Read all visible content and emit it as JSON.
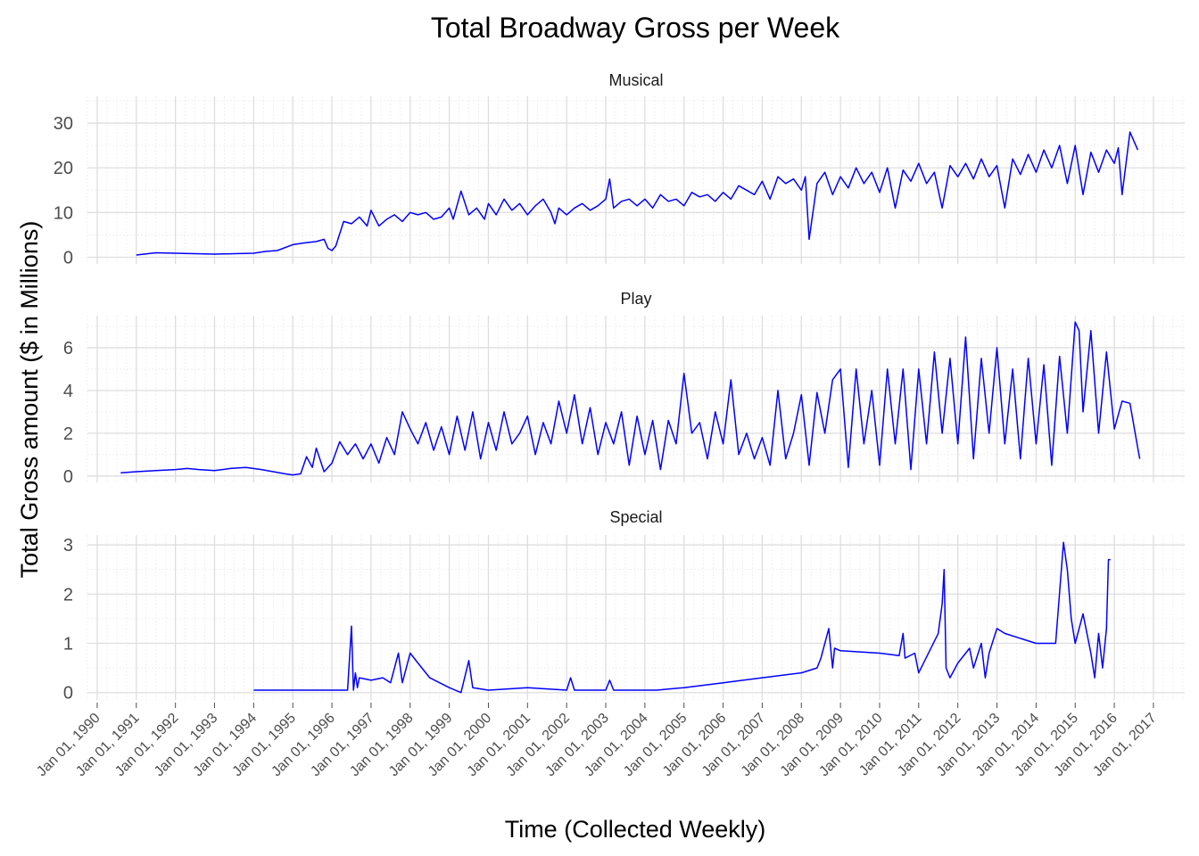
{
  "chart_data": {
    "type": "line",
    "title": "Total Broadway Gross per Week",
    "xlabel": "Time (Collected Weekly)",
    "ylabel": "Total Gross amount ($ in Millions)",
    "line_color": "#0000ff",
    "x_ticks": [
      "Jan 01, 1990",
      "Jan 01, 1991",
      "Jan 01, 1992",
      "Jan 01, 1993",
      "Jan 01, 1994",
      "Jan 01, 1995",
      "Jan 01, 1996",
      "Jan 01, 1997",
      "Jan 01, 1998",
      "Jan 01, 1999",
      "Jan 01, 2000",
      "Jan 01, 2001",
      "Jan 01, 2002",
      "Jan 01, 2003",
      "Jan 01, 2004",
      "Jan 01, 2005",
      "Jan 01, 2006",
      "Jan 01, 2007",
      "Jan 01, 2008",
      "Jan 01, 2009",
      "Jan 01, 2010",
      "Jan 01, 2011",
      "Jan 01, 2012",
      "Jan 01, 2013",
      "Jan 01, 2014",
      "Jan 01, 2015",
      "Jan 01, 2016",
      "Jan 01, 2017"
    ],
    "xlim": [
      1989.75,
      2017.8
    ],
    "grid": true,
    "panels": [
      {
        "name": "Musical",
        "ylim": [
          -1.5,
          36
        ],
        "y_ticks": [
          0,
          10,
          20,
          30
        ],
        "x": [
          1991.0,
          1991.5,
          1992.0,
          1992.5,
          1993.0,
          1993.5,
          1994.0,
          1994.3,
          1994.6,
          1995.0,
          1995.3,
          1995.6,
          1995.8,
          1995.9,
          1996.0,
          1996.1,
          1996.3,
          1996.5,
          1996.7,
          1996.9,
          1997.0,
          1997.2,
          1997.4,
          1997.6,
          1997.8,
          1998.0,
          1998.2,
          1998.4,
          1998.6,
          1998.8,
          1999.0,
          1999.1,
          1999.3,
          1999.5,
          1999.7,
          1999.9,
          2000.0,
          2000.2,
          2000.4,
          2000.6,
          2000.8,
          2001.0,
          2001.2,
          2001.4,
          2001.6,
          2001.7,
          2001.8,
          2002.0,
          2002.2,
          2002.4,
          2002.6,
          2002.8,
          2003.0,
          2003.1,
          2003.2,
          2003.4,
          2003.6,
          2003.8,
          2004.0,
          2004.2,
          2004.4,
          2004.6,
          2004.8,
          2005.0,
          2005.2,
          2005.4,
          2005.6,
          2005.8,
          2006.0,
          2006.2,
          2006.4,
          2006.6,
          2006.8,
          2007.0,
          2007.2,
          2007.4,
          2007.6,
          2007.8,
          2008.0,
          2008.1,
          2008.2,
          2008.4,
          2008.6,
          2008.8,
          2009.0,
          2009.2,
          2009.4,
          2009.6,
          2009.8,
          2010.0,
          2010.2,
          2010.4,
          2010.6,
          2010.8,
          2011.0,
          2011.2,
          2011.4,
          2011.6,
          2011.8,
          2012.0,
          2012.2,
          2012.4,
          2012.6,
          2012.8,
          2013.0,
          2013.2,
          2013.4,
          2013.6,
          2013.8,
          2014.0,
          2014.2,
          2014.4,
          2014.6,
          2014.8,
          2015.0,
          2015.2,
          2015.4,
          2015.6,
          2015.8,
          2016.0,
          2016.1,
          2016.2,
          2016.4,
          2016.6
        ],
        "y": [
          0.5,
          1.0,
          0.9,
          0.8,
          0.7,
          0.8,
          0.9,
          1.3,
          1.5,
          2.8,
          3.2,
          3.5,
          4.0,
          2.0,
          1.5,
          2.5,
          8.0,
          7.5,
          9.0,
          7.0,
          10.5,
          7.0,
          8.5,
          9.5,
          8.0,
          10.0,
          9.5,
          10.0,
          8.5,
          9.0,
          11.0,
          8.5,
          14.8,
          9.5,
          11.0,
          8.5,
          12.0,
          9.5,
          13.0,
          10.5,
          12.0,
          9.5,
          11.5,
          13.0,
          10.0,
          7.5,
          11.0,
          9.5,
          11.0,
          12.0,
          10.5,
          11.5,
          13.0,
          17.5,
          11.0,
          12.5,
          13.0,
          11.5,
          13.0,
          11.0,
          14.0,
          12.5,
          13.0,
          11.5,
          14.5,
          13.5,
          14.0,
          12.5,
          14.5,
          13.0,
          16.0,
          15.0,
          14.0,
          17.0,
          13.0,
          18.0,
          16.5,
          17.5,
          15.0,
          18.0,
          4.0,
          16.5,
          19.0,
          14.0,
          18.0,
          15.5,
          20.0,
          16.5,
          19.0,
          14.5,
          20.0,
          11.0,
          19.5,
          17.0,
          21.0,
          16.5,
          19.0,
          11.0,
          20.5,
          18.0,
          21.0,
          17.5,
          22.0,
          18.0,
          20.5,
          11.0,
          22.0,
          18.5,
          23.0,
          19.0,
          24.0,
          20.0,
          25.0,
          16.5,
          25.0,
          14.0,
          23.5,
          19.0,
          24.0,
          21.0,
          24.5,
          14.0,
          28.0,
          24.0
        ]
      },
      {
        "name": "Play",
        "ylim": [
          -0.3,
          7.5
        ],
        "y_ticks": [
          0,
          2,
          4,
          6
        ],
        "x": [
          1990.6,
          1991.0,
          1991.5,
          1992.0,
          1992.3,
          1992.6,
          1993.0,
          1993.4,
          1993.8,
          1994.2,
          1994.5,
          1994.8,
          1995.0,
          1995.2,
          1995.35,
          1995.5,
          1995.6,
          1995.8,
          1996.0,
          1996.2,
          1996.4,
          1996.6,
          1996.8,
          1997.0,
          1997.2,
          1997.4,
          1997.6,
          1997.8,
          1998.0,
          1998.2,
          1998.4,
          1998.6,
          1998.8,
          1999.0,
          1999.2,
          1999.4,
          1999.6,
          1999.8,
          2000.0,
          2000.2,
          2000.4,
          2000.6,
          2000.8,
          2001.0,
          2001.2,
          2001.4,
          2001.6,
          2001.8,
          2002.0,
          2002.2,
          2002.4,
          2002.6,
          2002.8,
          2003.0,
          2003.2,
          2003.4,
          2003.6,
          2003.8,
          2004.0,
          2004.2,
          2004.4,
          2004.6,
          2004.8,
          2005.0,
          2005.2,
          2005.4,
          2005.6,
          2005.8,
          2006.0,
          2006.2,
          2006.4,
          2006.6,
          2006.8,
          2007.0,
          2007.2,
          2007.4,
          2007.6,
          2007.8,
          2008.0,
          2008.2,
          2008.4,
          2008.6,
          2008.8,
          2009.0,
          2009.2,
          2009.4,
          2009.6,
          2009.8,
          2010.0,
          2010.2,
          2010.4,
          2010.6,
          2010.8,
          2011.0,
          2011.2,
          2011.4,
          2011.6,
          2011.8,
          2012.0,
          2012.2,
          2012.4,
          2012.6,
          2012.8,
          2013.0,
          2013.2,
          2013.4,
          2013.6,
          2013.8,
          2014.0,
          2014.2,
          2014.4,
          2014.6,
          2014.8,
          2015.0,
          2015.1,
          2015.2,
          2015.4,
          2015.6,
          2015.8,
          2016.0,
          2016.2,
          2016.4,
          2016.6,
          2016.65
        ],
        "y": [
          0.15,
          0.2,
          0.25,
          0.3,
          0.35,
          0.3,
          0.25,
          0.35,
          0.4,
          0.3,
          0.2,
          0.1,
          0.05,
          0.1,
          0.9,
          0.4,
          1.3,
          0.2,
          0.6,
          1.6,
          1.0,
          1.5,
          0.8,
          1.5,
          0.6,
          1.8,
          1.0,
          3.0,
          2.2,
          1.5,
          2.5,
          1.2,
          2.3,
          1.0,
          2.8,
          1.2,
          3.0,
          0.8,
          2.5,
          1.2,
          3.0,
          1.5,
          2.0,
          2.8,
          1.0,
          2.5,
          1.5,
          3.5,
          2.0,
          3.8,
          1.5,
          3.2,
          1.0,
          2.5,
          1.5,
          3.0,
          0.5,
          2.8,
          1.0,
          2.6,
          0.3,
          2.6,
          1.5,
          4.8,
          2.0,
          2.5,
          0.8,
          3.0,
          1.5,
          4.5,
          1.0,
          2.0,
          0.8,
          1.8,
          0.5,
          4.0,
          0.8,
          2.0,
          3.8,
          0.5,
          3.9,
          2.0,
          4.5,
          5.0,
          0.4,
          5.0,
          1.5,
          4.0,
          0.5,
          5.0,
          1.5,
          5.0,
          0.3,
          5.0,
          1.5,
          5.8,
          2.0,
          5.5,
          1.5,
          6.5,
          0.8,
          5.5,
          2.0,
          6.0,
          1.5,
          5.0,
          0.8,
          5.5,
          1.5,
          5.2,
          0.5,
          5.6,
          2.0,
          7.2,
          6.8,
          3.0,
          6.8,
          2.0,
          5.8,
          2.2,
          3.5,
          3.4,
          1.3,
          0.8
        ]
      },
      {
        "name": "Special",
        "ylim": [
          -0.15,
          3.2
        ],
        "y_ticks": [
          0,
          1,
          2,
          3
        ],
        "x": [
          1994.0,
          1995.0,
          1995.6,
          1996.0,
          1996.4,
          1996.5,
          1996.55,
          1996.6,
          1996.65,
          1996.7,
          1997.0,
          1997.3,
          1997.5,
          1997.7,
          1997.8,
          1998.0,
          1998.2,
          1998.3,
          1998.5,
          1999.0,
          1999.3,
          1999.5,
          1999.6,
          2000.0,
          2001.0,
          2002.0,
          2002.1,
          2002.2,
          2003.0,
          2003.1,
          2003.2,
          2004.0,
          2004.3,
          2005.0,
          2006.0,
          2007.0,
          2008.0,
          2008.4,
          2008.5,
          2008.7,
          2008.8,
          2008.85,
          2009.0,
          2010.0,
          2010.5,
          2010.6,
          2010.65,
          2010.9,
          2011.0,
          2011.5,
          2011.6,
          2011.65,
          2011.7,
          2011.8,
          2012.0,
          2012.3,
          2012.4,
          2012.6,
          2012.7,
          2012.8,
          2013.0,
          2013.2,
          2014.0,
          2014.5,
          2014.7,
          2014.8,
          2014.9,
          2015.0,
          2015.2,
          2015.4,
          2015.5,
          2015.6,
          2015.7,
          2015.8,
          2015.85,
          2015.9
        ],
        "y": [
          0.05,
          0.05,
          0.05,
          0.05,
          0.05,
          1.35,
          0.05,
          0.4,
          0.1,
          0.3,
          0.25,
          0.3,
          0.2,
          0.8,
          0.2,
          0.8,
          0.6,
          0.5,
          0.3,
          0.1,
          0.0,
          0.65,
          0.1,
          0.05,
          0.1,
          0.05,
          0.3,
          0.05,
          0.05,
          0.25,
          0.05,
          0.05,
          0.05,
          0.1,
          0.2,
          0.3,
          0.4,
          0.5,
          0.7,
          1.3,
          0.5,
          0.9,
          0.85,
          0.8,
          0.75,
          1.2,
          0.7,
          0.8,
          0.4,
          1.2,
          1.8,
          2.5,
          0.5,
          0.3,
          0.6,
          0.9,
          0.5,
          1.0,
          0.3,
          0.8,
          1.3,
          1.2,
          1.0,
          1.0,
          3.05,
          2.5,
          1.5,
          1.0,
          1.6,
          0.8,
          0.3,
          1.2,
          0.5,
          1.3,
          2.7,
          2.7
        ]
      }
    ]
  }
}
